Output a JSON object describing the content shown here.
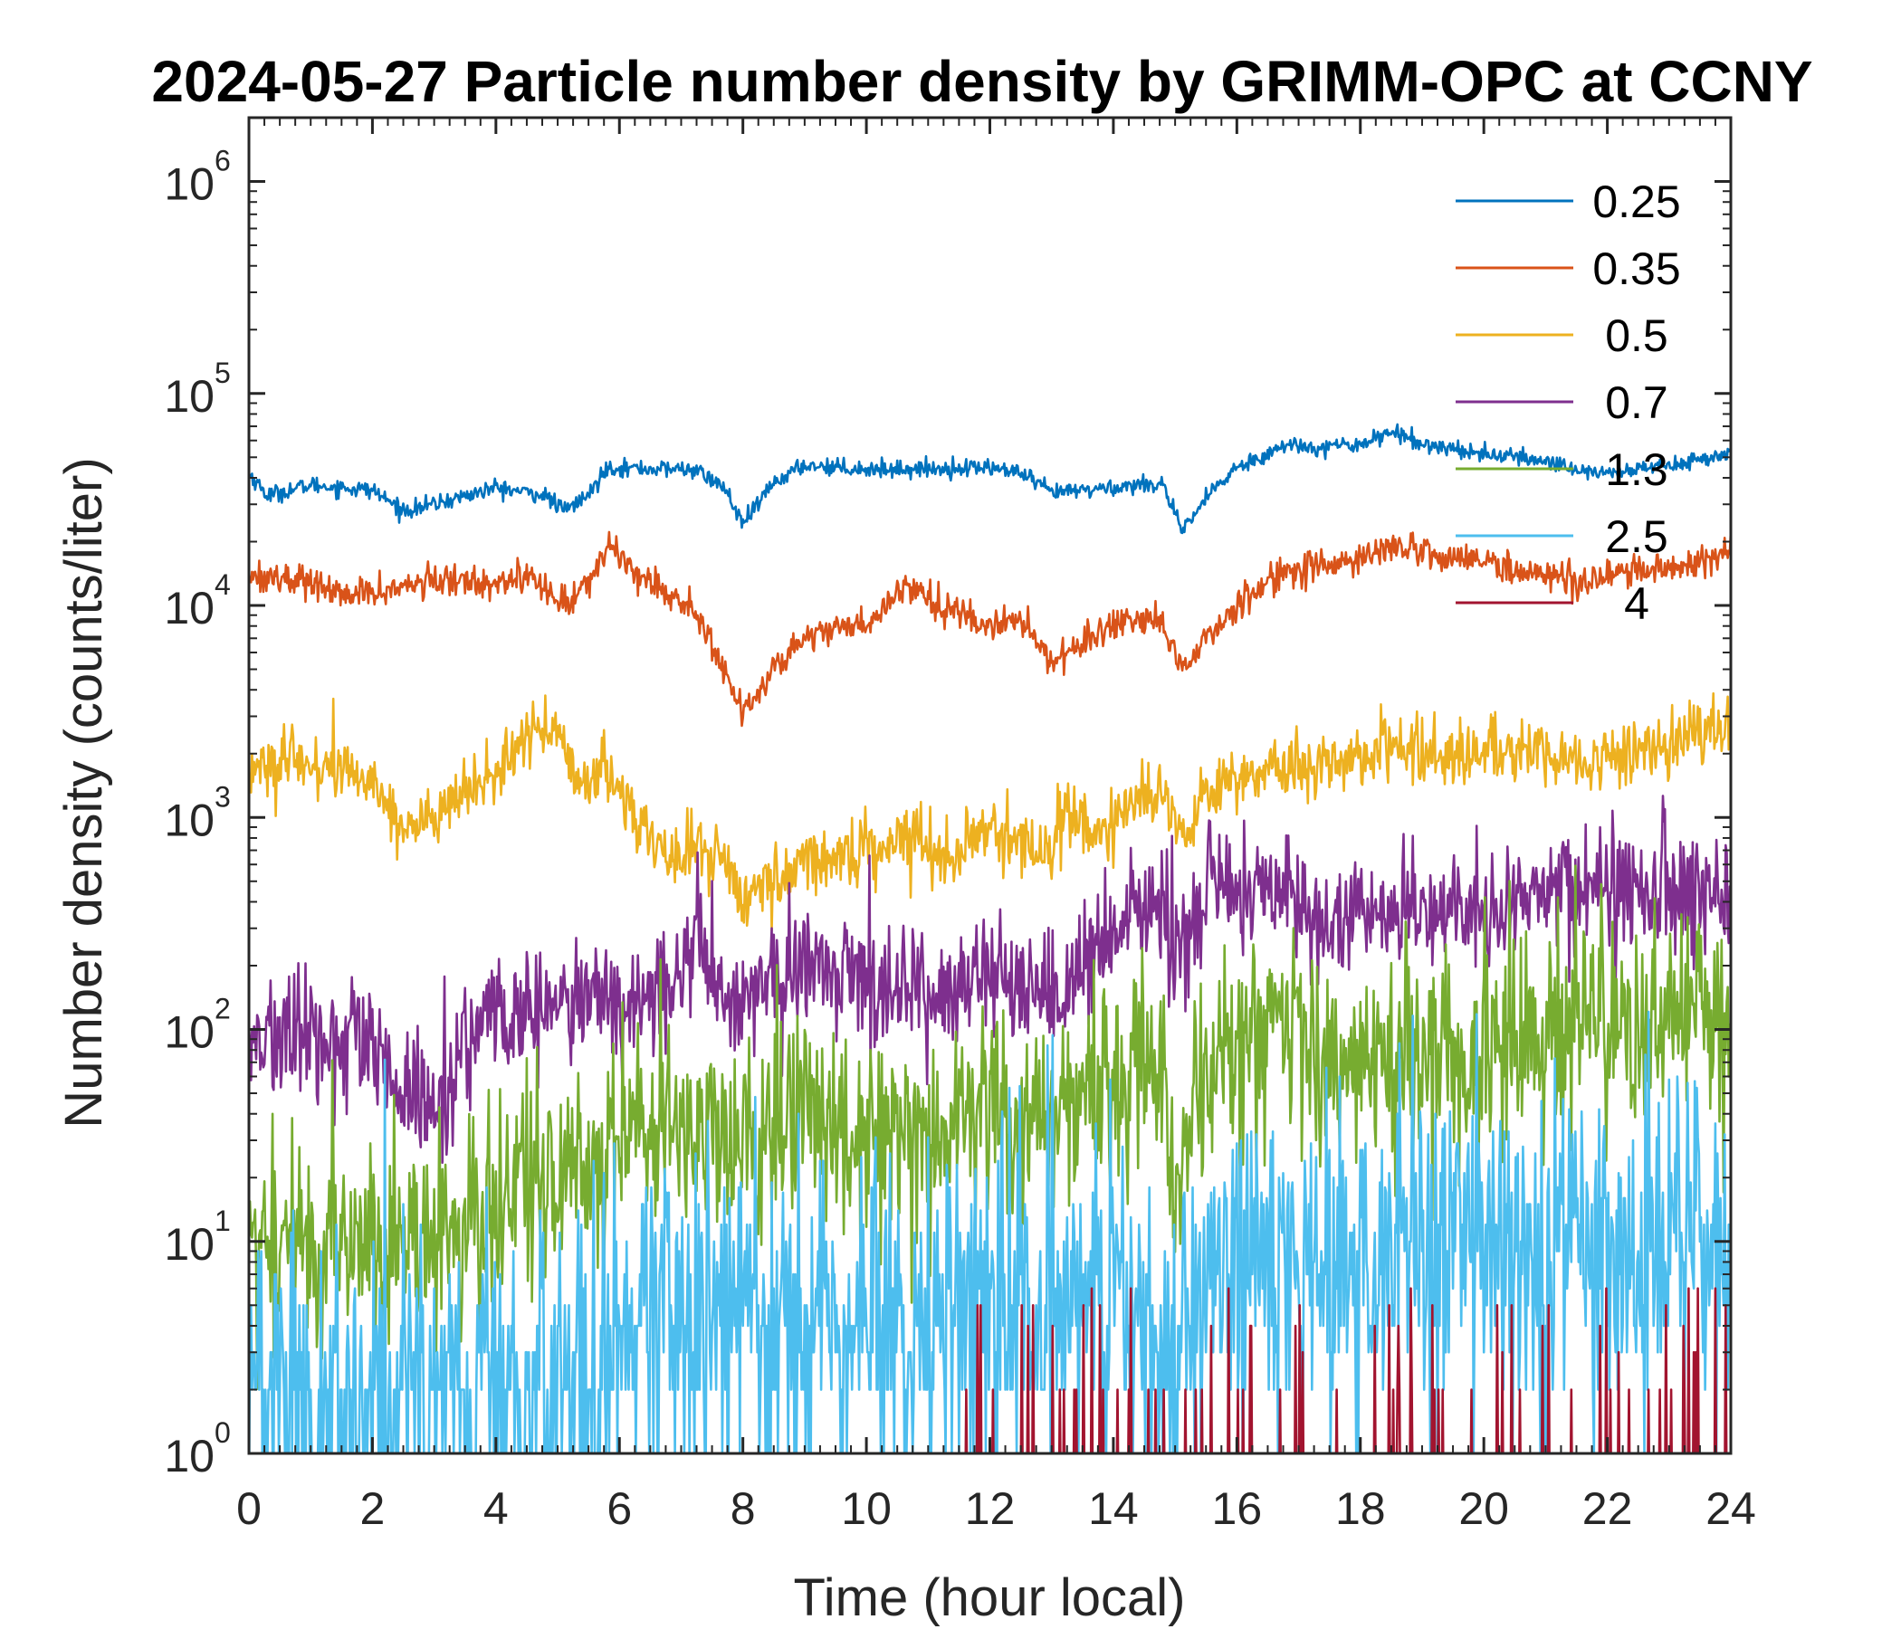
{
  "chart_data": {
    "type": "line",
    "title": "2024-05-27 Particle number density by GRIMM-OPC at CCNY",
    "xlabel": "Time (hour local)",
    "ylabel": "Number density (counts/liter)",
    "xlim": [
      0,
      24
    ],
    "ylim": [
      1,
      2000000
    ],
    "yscale": "log",
    "xticks": [
      0,
      2,
      4,
      6,
      8,
      10,
      12,
      14,
      16,
      18,
      20,
      22,
      24
    ],
    "xtick_labels": [
      "0",
      "2",
      "4",
      "6",
      "8",
      "10",
      "12",
      "14",
      "16",
      "18",
      "20",
      "22",
      "24"
    ],
    "yticks": [
      1,
      10,
      100,
      1000,
      10000,
      100000,
      1000000
    ],
    "ytick_labels": [
      {
        "base": "10",
        "exp": "0"
      },
      {
        "base": "10",
        "exp": "1"
      },
      {
        "base": "10",
        "exp": "2"
      },
      {
        "base": "10",
        "exp": "3"
      },
      {
        "base": "10",
        "exp": "4"
      },
      {
        "base": "10",
        "exp": "5"
      },
      {
        "base": "10",
        "exp": "6"
      }
    ],
    "grid": false,
    "legend_position": "top-right",
    "series": [
      {
        "name": "0.25",
        "color": "#0072BD",
        "noise": 0.08,
        "x": [
          0,
          0.3,
          1,
          2,
          2.5,
          3,
          4,
          4.8,
          5.1,
          5.5,
          5.8,
          6.5,
          7.2,
          7.7,
          8,
          8.5,
          9,
          10,
          11,
          12,
          12.5,
          13,
          14,
          14.8,
          15.1,
          15.5,
          16,
          16.8,
          17.5,
          18,
          18.5,
          19,
          20,
          21,
          21.5,
          22,
          23,
          24
        ],
        "y": [
          42000,
          33000,
          37000,
          35000,
          28000,
          30000,
          36000,
          33000,
          28000,
          33000,
          45000,
          44000,
          44000,
          36000,
          24000,
          38000,
          46000,
          44000,
          44000,
          45000,
          42000,
          34000,
          36000,
          38000,
          22000,
          32000,
          45000,
          57000,
          56000,
          58000,
          66000,
          58000,
          52000,
          48000,
          44000,
          42000,
          46000,
          52000
        ]
      },
      {
        "name": "0.35",
        "color": "#D95319",
        "noise": 0.15,
        "x": [
          0,
          1,
          1.5,
          2,
          3,
          4,
          4.5,
          5.1,
          5.5,
          5.8,
          6.5,
          7.3,
          7.8,
          8,
          8.5,
          9,
          9.5,
          10,
          10.7,
          11.2,
          12,
          12.5,
          13,
          13.5,
          14,
          14.8,
          15.1,
          15.5,
          16,
          16.8,
          17.5,
          18,
          18.5,
          19,
          20,
          21,
          21.5,
          22,
          23,
          24
        ],
        "y": [
          14000,
          13000,
          11000,
          11500,
          13000,
          13000,
          14000,
          10000,
          13000,
          19000,
          13000,
          9000,
          4200,
          3000,
          5200,
          7000,
          8000,
          8000,
          13000,
          10000,
          8000,
          8500,
          5500,
          6800,
          7800,
          8500,
          4700,
          7000,
          10000,
          15000,
          15000,
          17000,
          19000,
          18000,
          16000,
          14000,
          13000,
          14000,
          15000,
          18000
        ]
      },
      {
        "name": "0.5",
        "color": "#EDB120",
        "noise": 0.3,
        "x": [
          0,
          1,
          2,
          2.5,
          3,
          4,
          4.8,
          5.2,
          5.5,
          5.8,
          6.1,
          6.5,
          7,
          7.3,
          7.7,
          8,
          8.5,
          9,
          10,
          10.8,
          11.3,
          12,
          12.5,
          13,
          13.2,
          13.6,
          14,
          14.6,
          14.8,
          15.1,
          15.5,
          16,
          17,
          18,
          19,
          20,
          21,
          22,
          23,
          24
        ],
        "y": [
          1700,
          1800,
          1500,
          900,
          1000,
          1600,
          3000,
          1700,
          1400,
          1700,
          1200,
          800,
          600,
          800,
          600,
          420,
          500,
          620,
          700,
          850,
          650,
          850,
          800,
          650,
          1200,
          800,
          950,
          1250,
          1400,
          850,
          1300,
          1600,
          1700,
          2000,
          2100,
          2000,
          1900,
          1900,
          2200,
          2600
        ]
      },
      {
        "name": "0.7",
        "color": "#7E2F8E",
        "noise": 0.6,
        "x": [
          0,
          1,
          2,
          2.5,
          3,
          3.5,
          4,
          5,
          6,
          7,
          7.3,
          7.8,
          8.5,
          9,
          10,
          11,
          12,
          12.5,
          13,
          13.5,
          14,
          14.8,
          15,
          15.5,
          16,
          16.8,
          17.2,
          18,
          19,
          20,
          21,
          22,
          23,
          24
        ],
        "y": [
          90,
          90,
          80,
          45,
          45,
          85,
          110,
          130,
          130,
          170,
          260,
          140,
          150,
          200,
          180,
          150,
          180,
          130,
          130,
          200,
          280,
          420,
          220,
          450,
          420,
          520,
          300,
          360,
          380,
          350,
          450,
          480,
          480,
          480
        ]
      },
      {
        "name": "1.3",
        "color": "#77AC30",
        "noise": 1.0,
        "x": [
          0,
          1,
          2,
          3,
          4,
          5,
          6,
          7,
          7.8,
          8.5,
          9,
          10,
          11,
          12,
          12.8,
          13.5,
          14,
          14.6,
          14.8,
          15,
          15.3,
          16,
          16.8,
          17.3,
          18,
          19,
          20,
          21,
          22,
          23,
          24
        ],
        "y": [
          10,
          10,
          10,
          10,
          15,
          20,
          30,
          40,
          25,
          35,
          40,
          35,
          35,
          45,
          30,
          55,
          60,
          75,
          50,
          20,
          50,
          80,
          110,
          65,
          70,
          80,
          70,
          90,
          110,
          110,
          110
        ]
      },
      {
        "name": "2.5",
        "color": "#4DBEEE",
        "noise": 1.6,
        "x": [
          0,
          2,
          4,
          5.5,
          6,
          8,
          10,
          12,
          14,
          15,
          16,
          18,
          20,
          22,
          24
        ],
        "y": [
          2,
          2,
          2,
          2,
          4,
          5,
          4,
          5,
          6,
          4,
          8,
          8,
          7,
          10,
          10
        ]
      },
      {
        "name": "4",
        "color": "#A2142F",
        "noise": 1.2,
        "x": [
          0,
          24
        ],
        "y": [
          0.6,
          0.6
        ]
      }
    ]
  }
}
